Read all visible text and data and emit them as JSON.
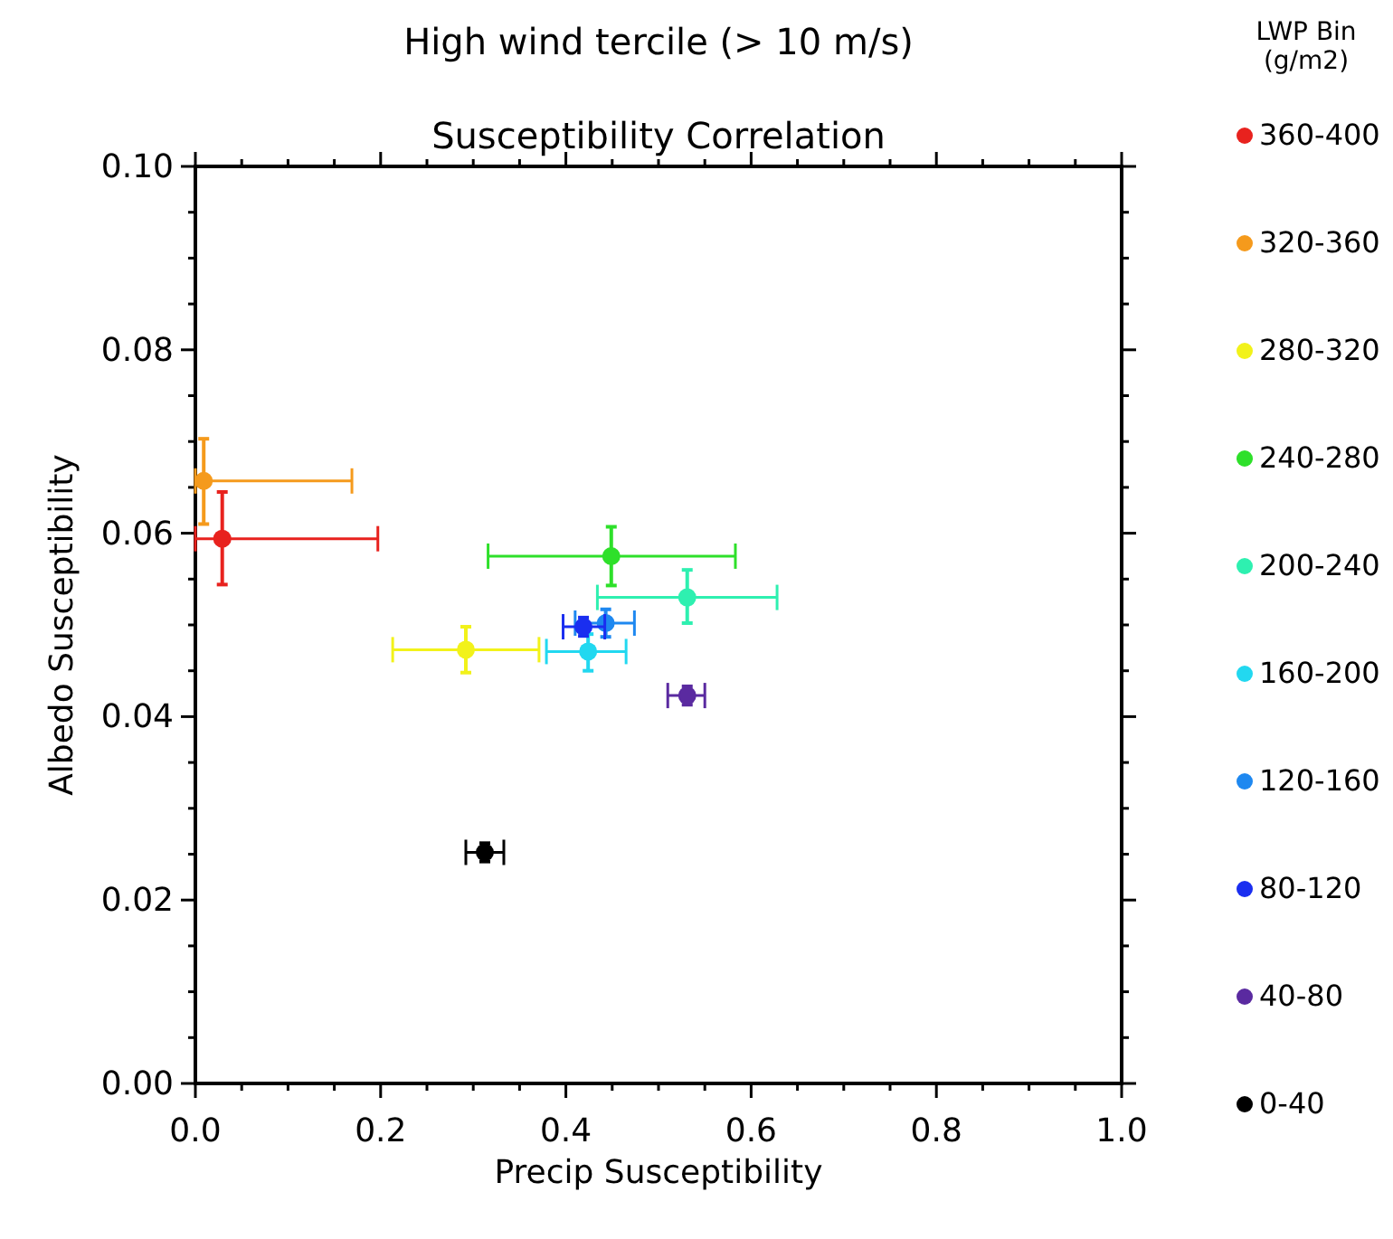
{
  "chart_data": {
    "type": "scatter",
    "title": "High wind tercile (> 10 m/s)",
    "subtitle": "Susceptibility Correlation",
    "xlabel": "Precip Susceptibility",
    "ylabel": "Albedo Susceptibility",
    "legend_title": "LWP Bin\n(g/m2)",
    "legend": "right",
    "marker": "circle",
    "grid": false,
    "xlim": [
      0,
      1
    ],
    "ylim": [
      0,
      0.1
    ],
    "xticks": [
      {
        "value": 0,
        "label": "0.0"
      },
      {
        "value": 0.05,
        "label": null
      },
      {
        "value": 0.1,
        "label": null
      },
      {
        "value": 0.15,
        "label": null
      },
      {
        "value": 0.2,
        "label": "0.2"
      },
      {
        "value": 0.25,
        "label": null
      },
      {
        "value": 0.3,
        "label": null
      },
      {
        "value": 0.35,
        "label": null
      },
      {
        "value": 0.4,
        "label": "0.4"
      },
      {
        "value": 0.45,
        "label": null
      },
      {
        "value": 0.5,
        "label": null
      },
      {
        "value": 0.55,
        "label": null
      },
      {
        "value": 0.6,
        "label": "0.6"
      },
      {
        "value": 0.65,
        "label": null
      },
      {
        "value": 0.7,
        "label": null
      },
      {
        "value": 0.75,
        "label": null
      },
      {
        "value": 0.8,
        "label": "0.8"
      },
      {
        "value": 0.85,
        "label": null
      },
      {
        "value": 0.9,
        "label": null
      },
      {
        "value": 0.95,
        "label": null
      },
      {
        "value": 1,
        "label": "1.0"
      }
    ],
    "yticks": [
      {
        "value": 0,
        "label": "0.00"
      },
      {
        "value": 0.005,
        "label": null
      },
      {
        "value": 0.01,
        "label": null
      },
      {
        "value": 0.015,
        "label": null
      },
      {
        "value": 0.02,
        "label": "0.02"
      },
      {
        "value": 0.025,
        "label": null
      },
      {
        "value": 0.03,
        "label": null
      },
      {
        "value": 0.035,
        "label": null
      },
      {
        "value": 0.04,
        "label": "0.04"
      },
      {
        "value": 0.045,
        "label": null
      },
      {
        "value": 0.05,
        "label": null
      },
      {
        "value": 0.055,
        "label": null
      },
      {
        "value": 0.06,
        "label": "0.06"
      },
      {
        "value": 0.065,
        "label": null
      },
      {
        "value": 0.07,
        "label": null
      },
      {
        "value": 0.075,
        "label": null
      },
      {
        "value": 0.08,
        "label": "0.08"
      },
      {
        "value": 0.085,
        "label": null
      },
      {
        "value": 0.09,
        "label": null
      },
      {
        "value": 0.095,
        "label": null
      },
      {
        "value": 0.1,
        "label": "0.10"
      }
    ],
    "series": [
      {
        "name": "360-400",
        "color": "#e8221e",
        "x": [
          0.029
        ],
        "values": [
          0.0594
        ],
        "xerrors": [
          [
            0.0,
            0.197
          ]
        ],
        "errors": [
          [
            0.0544,
            0.0645
          ]
        ]
      },
      {
        "name": "320-360",
        "color": "#f59a1c",
        "x": [
          0.009
        ],
        "values": [
          0.0657
        ],
        "xerrors": [
          [
            0.0,
            0.169
          ]
        ],
        "errors": [
          [
            0.061,
            0.0703
          ]
        ]
      },
      {
        "name": "280-320",
        "color": "#f2f21a",
        "x": [
          0.292
        ],
        "values": [
          0.0473
        ],
        "xerrors": [
          [
            0.213,
            0.371
          ]
        ],
        "errors": [
          [
            0.0448,
            0.0498
          ]
        ]
      },
      {
        "name": "240-280",
        "color": "#2ee02a",
        "x": [
          0.449
        ],
        "values": [
          0.0575
        ],
        "xerrors": [
          [
            0.316,
            0.583
          ]
        ],
        "errors": [
          [
            0.0543,
            0.0607
          ]
        ]
      },
      {
        "name": "200-240",
        "color": "#2ef0b0",
        "x": [
          0.531
        ],
        "values": [
          0.053
        ],
        "xerrors": [
          [
            0.434,
            0.628
          ]
        ],
        "errors": [
          [
            0.0502,
            0.056
          ]
        ]
      },
      {
        "name": "160-200",
        "color": "#22d8f0",
        "x": [
          0.424
        ],
        "values": [
          0.0471
        ],
        "xerrors": [
          [
            0.379,
            0.465
          ]
        ],
        "errors": [
          [
            0.045,
            0.049
          ]
        ]
      },
      {
        "name": "120-160",
        "color": "#1e88f0",
        "x": [
          0.443
        ],
        "values": [
          0.0502
        ],
        "xerrors": [
          [
            0.41,
            0.474
          ]
        ],
        "errors": [
          [
            0.0487,
            0.0517
          ]
        ]
      },
      {
        "name": "80-120",
        "color": "#1a2ef0",
        "x": [
          0.419
        ],
        "values": [
          0.0498
        ],
        "xerrors": [
          [
            0.397,
            0.442
          ]
        ],
        "errors": [
          [
            0.0488,
            0.0508
          ]
        ]
      },
      {
        "name": "40-80",
        "color": "#5a2aa0",
        "x": [
          0.531
        ],
        "values": [
          0.0423
        ],
        "xerrors": [
          [
            0.51,
            0.55
          ]
        ],
        "errors": [
          [
            0.0413,
            0.0433
          ]
        ]
      },
      {
        "name": "0-40",
        "color": "#000000",
        "x": [
          0.3125
        ],
        "values": [
          0.0252
        ],
        "xerrors": [
          [
            0.292,
            0.333
          ]
        ],
        "errors": [
          [
            0.0242,
            0.0262
          ]
        ]
      }
    ]
  }
}
